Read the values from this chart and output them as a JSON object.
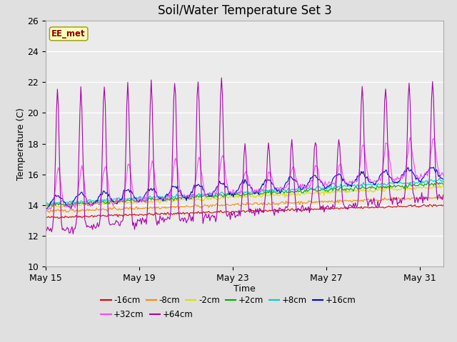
{
  "title": "Soil/Water Temperature Set 3",
  "xlabel": "Time",
  "ylabel": "Temperature (C)",
  "ylim": [
    10,
    26
  ],
  "x_tick_labels": [
    "May 15",
    "May 19",
    "May 23",
    "May 27",
    "May 31"
  ],
  "x_ticks_days": [
    0,
    4,
    8,
    12,
    16
  ],
  "y_ticks": [
    10,
    12,
    14,
    16,
    18,
    20,
    22,
    24,
    26
  ],
  "bg_color": "#e0e0e0",
  "plot_bg_color": "#ebebeb",
  "legend_label": "EE_met",
  "colors": {
    "-16cm": "#dd0000",
    "-8cm": "#ff8800",
    "-2cm": "#dddd00",
    "+2cm": "#00aa00",
    "+8cm": "#00cccc",
    "+16cm": "#0000cc",
    "+32cm": "#ff44ff",
    "+64cm": "#aa00aa"
  }
}
